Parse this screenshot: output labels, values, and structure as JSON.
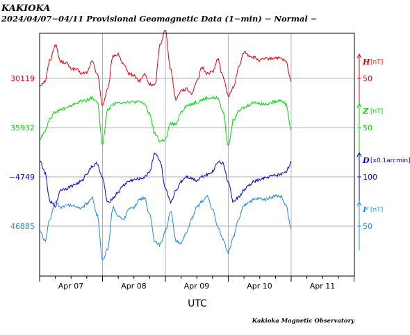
{
  "title": "KAKIOKA",
  "subtitle": "2024/04/07−04/11  Provisional Geomagnetic Data (1−min)  − Normal −",
  "footer": "Kakioka Magnetic Observatory",
  "chart_data": {
    "type": "line",
    "xlabel": "UTC",
    "x_ticks": [
      "Apr 07",
      "Apr 08",
      "Apr 09",
      "Apr 10",
      "Apr 11"
    ],
    "x_range": [
      "2024-04-07T00:00Z",
      "2024-04-12T00:00Z"
    ],
    "grid": true,
    "data_ends": "2024-04-11T00:00Z",
    "series": [
      {
        "symbol": "H",
        "unit": "[nT]",
        "baseline_label": "30119",
        "scale_label": "50",
        "color": "#e8000b",
        "hours": [
          0,
          2,
          4,
          6,
          8,
          10,
          12,
          14,
          16,
          18,
          20,
          22,
          24,
          26,
          28,
          30,
          32,
          34,
          36,
          38,
          40,
          42,
          44,
          46,
          48,
          50,
          52,
          54,
          56,
          58,
          60,
          62,
          64,
          66,
          68,
          70,
          72,
          74,
          76,
          78,
          80,
          82,
          84,
          86,
          88,
          90,
          92,
          94,
          96
        ],
        "values": [
          30112,
          30116,
          30138,
          30153,
          30136,
          30135,
          30129,
          30128,
          30124,
          30125,
          30136,
          30124,
          30092,
          30108,
          30142,
          30143,
          30133,
          30124,
          30122,
          30116,
          30123,
          30113,
          30112,
          30154,
          30168,
          30128,
          30098,
          30107,
          30108,
          30104,
          30116,
          30130,
          30124,
          30126,
          30138,
          30121,
          30101,
          30110,
          30130,
          30146,
          30142,
          30140,
          30137,
          30139,
          30139,
          30140,
          30139,
          30136,
          30116
        ]
      },
      {
        "symbol": "Z",
        "unit": "[nT]",
        "baseline_label": "35932",
        "scale_label": "50",
        "color": "#00d800",
        "hours": [
          0,
          2,
          4,
          6,
          8,
          10,
          12,
          14,
          16,
          18,
          20,
          22,
          24,
          26,
          28,
          30,
          32,
          34,
          36,
          38,
          40,
          42,
          44,
          46,
          48,
          50,
          52,
          54,
          56,
          58,
          60,
          62,
          64,
          66,
          68,
          70,
          72,
          74,
          76,
          78,
          80,
          82,
          84,
          86,
          88,
          90,
          92,
          94,
          96
        ],
        "values": [
          35920,
          35928,
          35942,
          35948,
          35950,
          35952,
          35954,
          35957,
          35959,
          35960,
          35962,
          35958,
          35916,
          35950,
          35956,
          35957,
          35958,
          35958,
          35958,
          35958,
          35956,
          35946,
          35926,
          35918,
          35920,
          35936,
          35935,
          35948,
          35954,
          35956,
          35958,
          35960,
          35962,
          35962,
          35962,
          35948,
          35914,
          35940,
          35950,
          35952,
          35955,
          35958,
          35956,
          35956,
          35957,
          35959,
          35960,
          35956,
          35930
        ]
      },
      {
        "symbol": "D",
        "unit": "[x0.1arcmin]",
        "baseline_label": "−4749",
        "scale_label": "100",
        "color": "#0000d0",
        "hours": [
          0,
          2,
          4,
          6,
          8,
          10,
          12,
          14,
          16,
          18,
          20,
          22,
          24,
          26,
          28,
          30,
          32,
          34,
          36,
          38,
          40,
          42,
          44,
          46,
          48,
          50,
          52,
          54,
          56,
          58,
          60,
          62,
          64,
          66,
          68,
          70,
          72,
          74,
          76,
          78,
          80,
          82,
          84,
          86,
          88,
          90,
          92,
          94,
          96
        ],
        "values": [
          -4715,
          -4740,
          -4800,
          -4808,
          -4775,
          -4773,
          -4768,
          -4763,
          -4758,
          -4742,
          -4728,
          -4722,
          -4752,
          -4802,
          -4792,
          -4780,
          -4766,
          -4758,
          -4755,
          -4753,
          -4750,
          -4738,
          -4700,
          -4718,
          -4775,
          -4800,
          -4778,
          -4758,
          -4748,
          -4752,
          -4756,
          -4748,
          -4744,
          -4738,
          -4718,
          -4722,
          -4760,
          -4800,
          -4790,
          -4776,
          -4766,
          -4758,
          -4755,
          -4752,
          -4748,
          -4746,
          -4744,
          -4738,
          -4720
        ]
      },
      {
        "symbol": "F",
        "unit": "[nT]",
        "baseline_label": "46885",
        "scale_label": "50",
        "color": "#1e88e5",
        "hours": [
          0,
          2,
          4,
          6,
          8,
          10,
          12,
          14,
          16,
          18,
          20,
          22,
          24,
          26,
          28,
          30,
          32,
          34,
          36,
          38,
          40,
          42,
          44,
          46,
          48,
          50,
          52,
          54,
          56,
          58,
          60,
          62,
          64,
          66,
          68,
          70,
          72,
          74,
          76,
          78,
          80,
          82,
          84,
          86,
          88,
          90,
          92,
          94,
          96
        ],
        "values": [
          46880,
          46870,
          46892,
          46910,
          46904,
          46906,
          46906,
          46905,
          46903,
          46908,
          46914,
          46896,
          46850,
          46862,
          46904,
          46895,
          46892,
          46902,
          46904,
          46912,
          46914,
          46896,
          46870,
          46866,
          46880,
          46900,
          46870,
          46868,
          46878,
          46892,
          46904,
          46910,
          46915,
          46902,
          46884,
          46872,
          46858,
          46874,
          46892,
          46906,
          46910,
          46912,
          46913,
          46912,
          46914,
          46916,
          46915,
          46906,
          46882
        ]
      }
    ]
  }
}
